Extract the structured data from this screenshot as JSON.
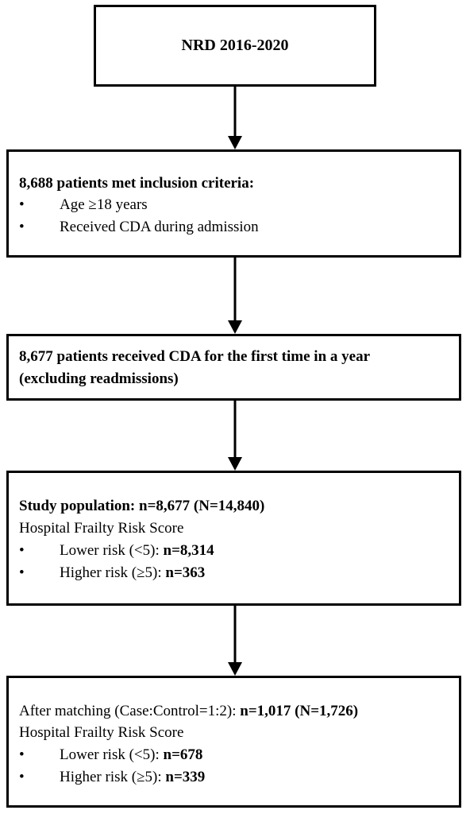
{
  "boxes": {
    "source": {
      "title": "NRD 2016-2020"
    },
    "inclusion": {
      "heading": "8,688 patients met inclusion criteria:",
      "bullets": [
        {
          "symbol": "•",
          "text": "Age ≥18 years"
        },
        {
          "symbol": "•",
          "text": "Received CDA during admission"
        }
      ]
    },
    "first_time": {
      "line1": "8,677 patients received CDA for the first time in a year",
      "line2": "(excluding readmissions)"
    },
    "study_population": {
      "heading": "Study population: n=8,677 (N=14,840)",
      "subheading": "Hospital Frailty Risk Score",
      "bullets": [
        {
          "symbol": "•",
          "label": "Lower risk (<5): ",
          "value": "n=8,314"
        },
        {
          "symbol": "•",
          "label": "Higher risk (≥5): ",
          "value": "n=363"
        }
      ]
    },
    "matched": {
      "heading_label": "After matching (Case:Control=1:2): ",
      "heading_value": "n=1,017 (N=1,726)",
      "subheading": "Hospital Frailty Risk Score",
      "bullets": [
        {
          "symbol": "•",
          "label": "Lower risk (<5): ",
          "value": "n=678"
        },
        {
          "symbol": "•",
          "label": "Higher risk (≥5): ",
          "value": "n=339"
        }
      ]
    }
  },
  "colors": {
    "border": "#000000",
    "background": "#ffffff",
    "text": "#000000"
  }
}
